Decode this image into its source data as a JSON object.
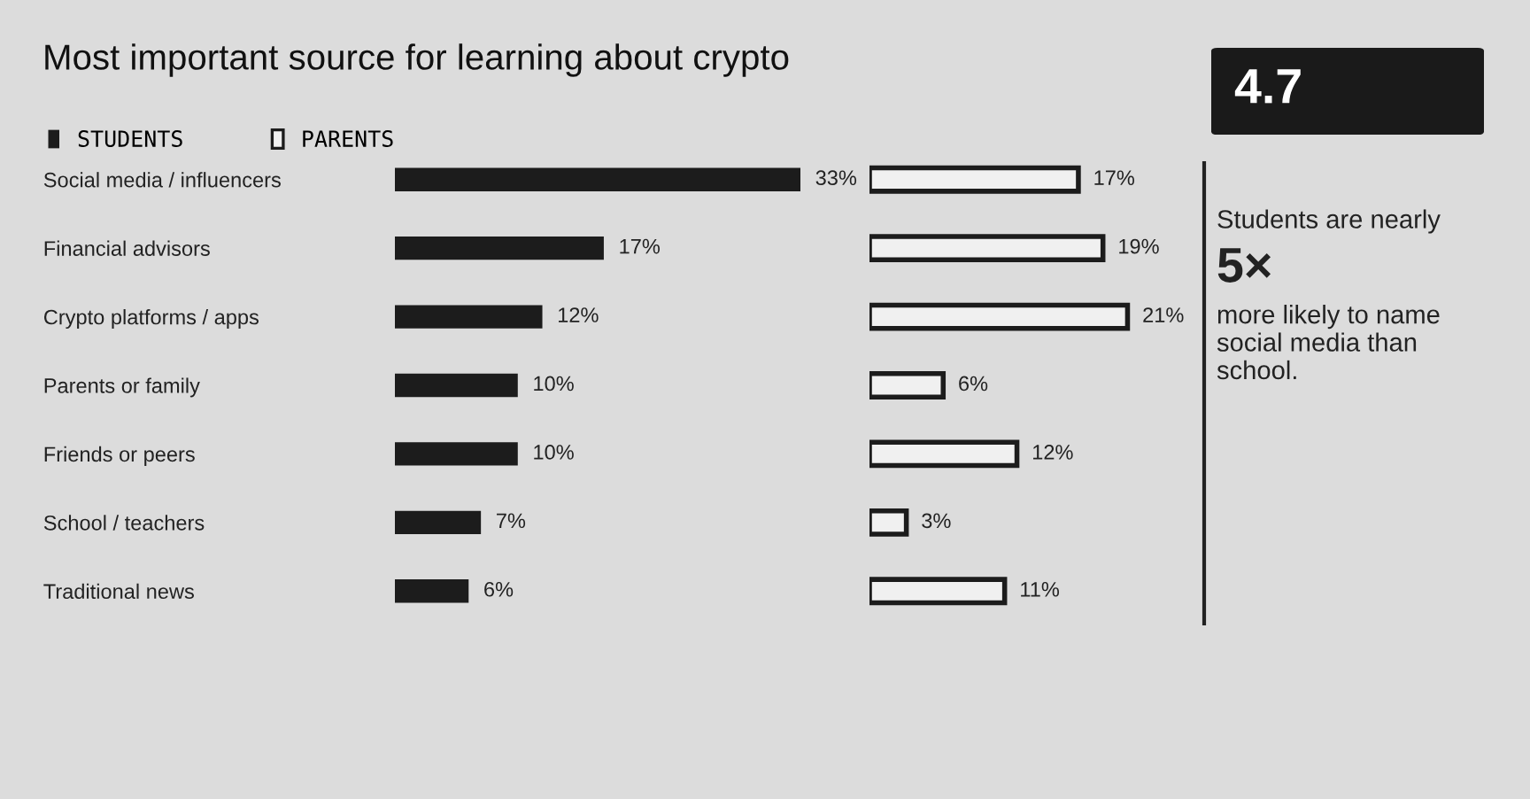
{
  "chart_data": [
    {
      "type": "bar",
      "title": "Most important source for learning about crypto",
      "orientation": "horizontal",
      "legend": "top left",
      "categories": [
        "Social media / influencers",
        "Financial advisors",
        "Crypto platforms / apps",
        "Parents or family",
        "Friends or peers",
        "School / teachers",
        "Traditional news"
      ],
      "series": [
        {
          "name": "STUDENTS",
          "color": "#1c1c1c",
          "values": [
            33,
            17,
            12,
            10,
            10,
            7,
            6
          ],
          "value_labels": [
            "33%",
            "17%",
            "12%",
            "10%",
            "10%",
            "7%",
            "6%"
          ]
        }
      ]
    },
    {
      "type": "bar",
      "orientation": "horizontal",
      "legend": "top left",
      "categories": [
        null,
        null,
        null,
        null,
        null,
        null,
        null
      ],
      "series": [
        {
          "name": "PARENTS",
          "color": "#f0f0f0",
          "values": [
            17,
            19,
            21,
            6,
            12,
            3,
            11
          ],
          "value_labels": [
            "17%",
            "19%",
            "21%",
            "6%",
            "12%",
            "3%",
            "11%"
          ]
        }
      ]
    },
    {
      "type": "other",
      "title": "4.7",
      "annotations": [
        "Students are nearly",
        "5×",
        "more likely to name\nsocial media than\nschool."
      ]
    }
  ]
}
